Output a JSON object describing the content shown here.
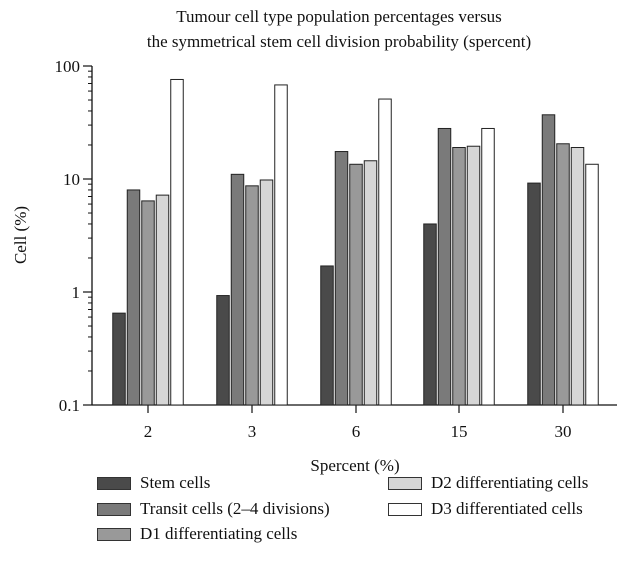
{
  "chart_data": {
    "type": "bar",
    "title": "Tumour cell type population percentages versus the symmetrical stem cell division probability (spercent)",
    "title_lines": [
      "Tumour cell type population percentages versus",
      "the symmetrical stem cell division probability (spercent)"
    ],
    "xlabel": "Spercent (%)",
    "ylabel": "Cell (%)",
    "yscale": "log",
    "ylim": [
      0.1,
      100
    ],
    "yticks": [
      "0.1",
      "1",
      "10",
      "100"
    ],
    "grid": false,
    "legend_position": "bottom",
    "categories": [
      "2",
      "3",
      "6",
      "15",
      "30"
    ],
    "series": [
      {
        "name": "Stem cells",
        "color": "#4a4a4a",
        "values": [
          0.65,
          0.93,
          1.7,
          4.0,
          9.2
        ]
      },
      {
        "name": "Transit cells (2–4 divisions)",
        "color": "#7a7a7a",
        "values": [
          8.0,
          11.0,
          17.5,
          28.0,
          37.0
        ]
      },
      {
        "name": "D1 differentiating cells",
        "color": "#999999",
        "values": [
          6.4,
          8.7,
          13.5,
          19.0,
          20.5
        ]
      },
      {
        "name": "D2 differentiating cells",
        "color": "#d6d6d6",
        "values": [
          7.2,
          9.8,
          14.5,
          19.5,
          19.0
        ]
      },
      {
        "name": "D3 differentiated cells",
        "color": "#ffffff",
        "values": [
          76.0,
          68.0,
          51.0,
          28.0,
          13.5
        ]
      }
    ]
  }
}
